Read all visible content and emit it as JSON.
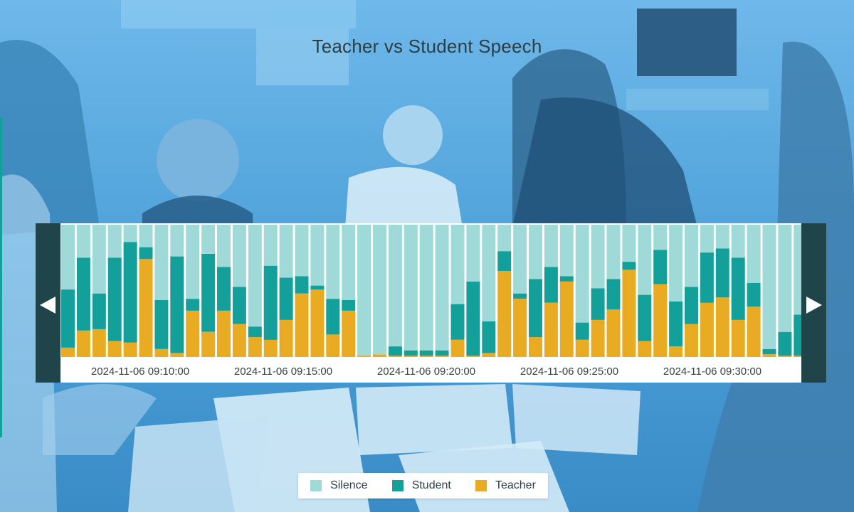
{
  "chart_data": {
    "type": "bar",
    "stacked": true,
    "title": "Teacher vs Student Speech",
    "xlabel": "",
    "ylabel": "",
    "ylim": [
      0,
      1
    ],
    "x_ticks": [
      "2024-11-06 09:10:00",
      "2024-11-06 09:15:00",
      "2024-11-06 09:20:00",
      "2024-11-06 09:25:00",
      "2024-11-06 09:30:00"
    ],
    "legend_position": "bottom",
    "grid": false,
    "series": [
      {
        "name": "Teacher",
        "color": "#e8ab22",
        "values": [
          0.07,
          0.2,
          0.21,
          0.12,
          0.11,
          0.74,
          0.06,
          0.03,
          0.35,
          0.19,
          0.35,
          0.25,
          0.15,
          0.13,
          0.28,
          0.48,
          0.51,
          0.17,
          0.35,
          0.01,
          0.02,
          0.01,
          0.01,
          0.01,
          0.01,
          0.13,
          0.01,
          0.03,
          0.65,
          0.44,
          0.15,
          0.41,
          0.57,
          0.13,
          0.28,
          0.36,
          0.66,
          0.12,
          0.55,
          0.08,
          0.25,
          0.41,
          0.45,
          0.28,
          0.38,
          0.02,
          0.01,
          0.01,
          0.05
        ]
      },
      {
        "name": "Student",
        "color": "#14a09a",
        "values": [
          0.44,
          0.55,
          0.27,
          0.63,
          0.76,
          0.09,
          0.37,
          0.73,
          0.09,
          0.59,
          0.33,
          0.28,
          0.08,
          0.56,
          0.32,
          0.13,
          0.03,
          0.27,
          0.08,
          0.0,
          0.0,
          0.07,
          0.04,
          0.04,
          0.04,
          0.27,
          0.56,
          0.24,
          0.15,
          0.04,
          0.44,
          0.27,
          0.04,
          0.13,
          0.24,
          0.23,
          0.06,
          0.35,
          0.26,
          0.34,
          0.28,
          0.38,
          0.37,
          0.47,
          0.18,
          0.04,
          0.18,
          0.31,
          0.4
        ]
      },
      {
        "name": "Silence",
        "color": "#9fdad8",
        "values": [
          0.49,
          0.25,
          0.52,
          0.25,
          0.13,
          0.17,
          0.57,
          0.24,
          0.56,
          0.22,
          0.32,
          0.47,
          0.77,
          0.31,
          0.4,
          0.39,
          0.46,
          0.56,
          0.57,
          0.99,
          0.98,
          0.92,
          0.95,
          0.95,
          0.95,
          0.6,
          0.43,
          0.73,
          0.2,
          0.52,
          0.41,
          0.32,
          0.39,
          0.74,
          0.48,
          0.41,
          0.28,
          0.53,
          0.19,
          0.58,
          0.47,
          0.21,
          0.18,
          0.25,
          0.44,
          0.94,
          0.81,
          0.68,
          0.55
        ]
      }
    ]
  },
  "legend": [
    {
      "label": "Silence",
      "color": "#9fdad8"
    },
    {
      "label": "Student",
      "color": "#14a09a"
    },
    {
      "label": "Teacher",
      "color": "#e8ab22"
    }
  ],
  "controls": {
    "prev_icon": "triangle-left-icon",
    "next_icon": "triangle-right-icon"
  },
  "background": {
    "description_icon": "classroom-photo",
    "tint": "#5aaee6"
  }
}
